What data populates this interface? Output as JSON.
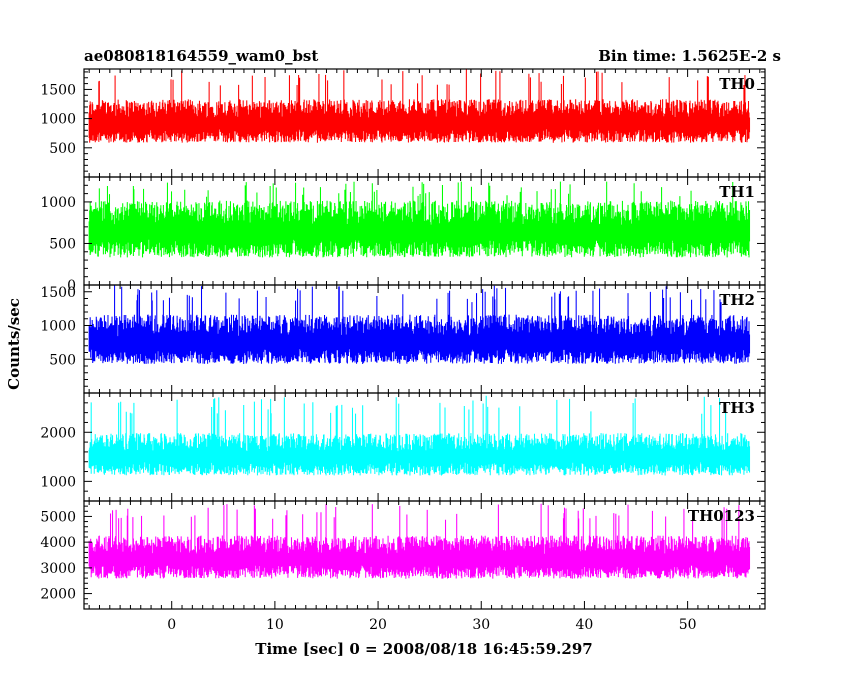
{
  "chart_data": {
    "type": "line",
    "title": "ae080818164559_wam0_bst",
    "subtitle": "Bin time: 1.5625E-2 s",
    "xlabel": "Time [sec] 0 = 2008/08/18 16:45:59.297",
    "ylabel": "Counts/sec",
    "xlim": [
      -8.5,
      57.5
    ],
    "x_range": [
      -8.0,
      56.0
    ],
    "xticks": [
      0,
      10,
      20,
      30,
      40,
      50
    ],
    "grid": false,
    "legend": "none",
    "panels": [
      {
        "name": "TH0",
        "color": "#ff0000",
        "ylim": [
          0,
          1850
        ],
        "yticks": [
          500,
          1000,
          1500
        ],
        "mean": 900,
        "fluct_low": 260,
        "fluct_high": 360,
        "floor": 130,
        "peak": 1850
      },
      {
        "name": "TH1",
        "color": "#00ff00",
        "ylim": [
          0,
          1300
        ],
        "yticks": [
          0,
          500,
          1000
        ],
        "mean": 620,
        "fluct_low": 240,
        "fluct_high": 330,
        "floor": 40,
        "peak": 1250
      },
      {
        "name": "TH2",
        "color": "#0000ff",
        "ylim": [
          0,
          1600
        ],
        "yticks": [
          500,
          1000,
          1500
        ],
        "mean": 730,
        "fluct_low": 250,
        "fluct_high": 360,
        "floor": 90,
        "peak": 1600
      },
      {
        "name": "TH3",
        "color": "#00ffff",
        "ylim": [
          600,
          2800
        ],
        "yticks": [
          1000,
          2000
        ],
        "mean": 1480,
        "fluct_low": 300,
        "fluct_high": 420,
        "floor": 700,
        "peak": 2750
      },
      {
        "name": "TH0123",
        "color": "#ff00ff",
        "ylim": [
          1400,
          5600
        ],
        "yticks": [
          2000,
          3000,
          4000,
          5000
        ],
        "mean": 3300,
        "fluct_low": 600,
        "fluct_high": 800,
        "floor": 1500,
        "peak": 5500
      }
    ]
  }
}
